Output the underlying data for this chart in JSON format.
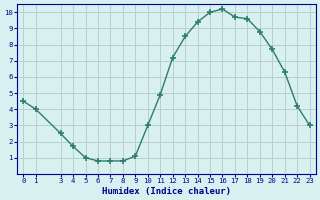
{
  "x": [
    0,
    1,
    3,
    4,
    5,
    6,
    7,
    8,
    9,
    10,
    11,
    12,
    13,
    14,
    15,
    16,
    17,
    18,
    19,
    20,
    21,
    22,
    23
  ],
  "y": [
    4.5,
    4.0,
    2.5,
    1.7,
    1.0,
    0.8,
    0.8,
    0.8,
    1.1,
    3.0,
    4.9,
    7.2,
    8.5,
    9.4,
    10.0,
    10.2,
    9.7,
    9.6,
    8.8,
    7.7,
    6.3,
    4.2,
    3.0
  ],
  "xlabel": "Humidex (Indice chaleur)",
  "xlim": [
    -0.5,
    23.5
  ],
  "ylim": [
    0,
    10.5
  ],
  "xticks": [
    0,
    1,
    3,
    4,
    5,
    6,
    7,
    8,
    9,
    10,
    11,
    12,
    13,
    14,
    15,
    16,
    17,
    18,
    19,
    20,
    21,
    22,
    23
  ],
  "yticks": [
    1,
    2,
    3,
    4,
    5,
    6,
    7,
    8,
    9,
    10
  ],
  "line_color": "#2e7d6e",
  "bg_color": "#d8f0f0",
  "grid_color": "#b8d0d0",
  "label_color": "#00008b",
  "tick_color": "#00008b",
  "font_family": "monospace",
  "xlabel_fontsize": 6.5,
  "tick_fontsize": 5.2
}
